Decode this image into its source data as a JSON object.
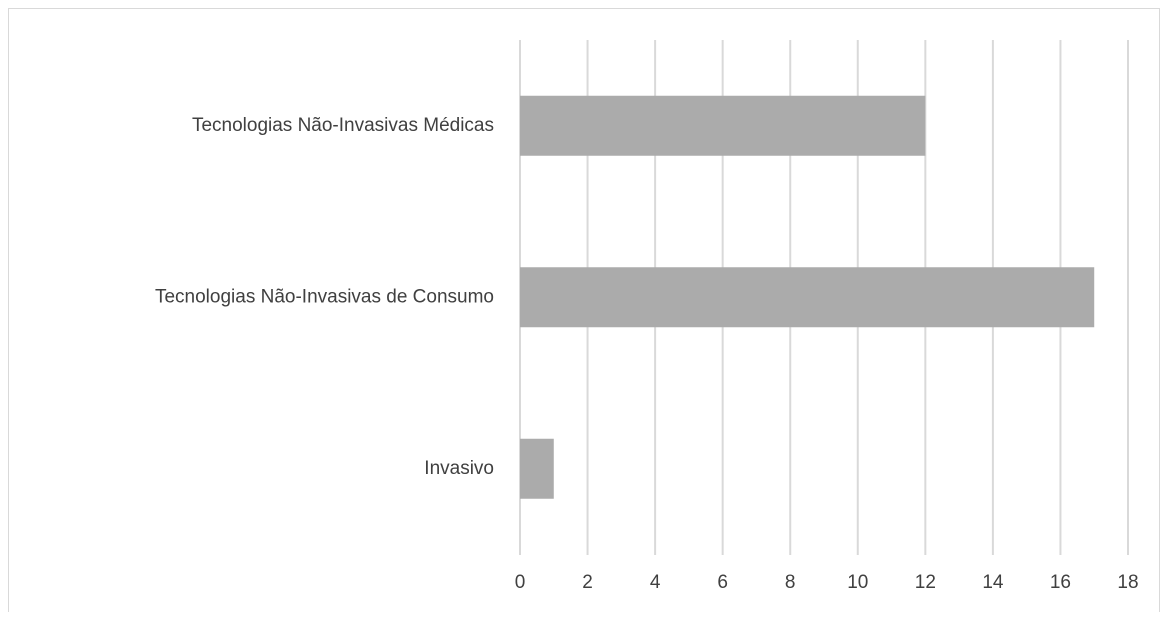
{
  "chart_data": {
    "type": "barh",
    "categories": [
      "Tecnologias Não-Invasivas Médicas",
      "Tecnologias Não-Invasivas de Consumo",
      "Invasivo"
    ],
    "values": [
      12,
      17,
      1
    ],
    "color": "#ababab",
    "xlim": [
      0,
      18
    ],
    "xticks": [
      0,
      2,
      4,
      6,
      8,
      10,
      12,
      14,
      16,
      18
    ],
    "grid": true
  }
}
